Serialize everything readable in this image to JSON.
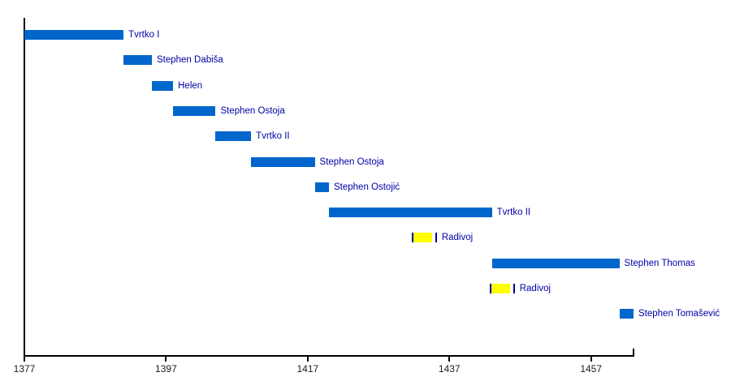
{
  "chart_data": {
    "type": "bar",
    "variant": "horizontal-timeline-gantt",
    "title": "",
    "xlabel": "",
    "ylabel": "",
    "x_axis": {
      "tick_labels": [
        "1377",
        "1397",
        "1417",
        "1437",
        "1457"
      ],
      "tick_years": [
        1377,
        1397,
        1417,
        1437,
        1457
      ],
      "range": [
        1377,
        1463
      ],
      "grid": false
    },
    "legend_position": "none",
    "bars": [
      {
        "label": "Tvrtko I",
        "start": 1377,
        "end": 1391,
        "style": "ruler"
      },
      {
        "label": "Stephen Dabiša",
        "start": 1391,
        "end": 1395,
        "style": "ruler"
      },
      {
        "label": "Helen",
        "start": 1395,
        "end": 1398,
        "style": "ruler"
      },
      {
        "label": "Stephen Ostoja",
        "start": 1398,
        "end": 1404,
        "style": "ruler"
      },
      {
        "label": "Tvrtko II",
        "start": 1404,
        "end": 1409,
        "style": "ruler"
      },
      {
        "label": "Stephen Ostoja",
        "start": 1409,
        "end": 1418,
        "style": "ruler"
      },
      {
        "label": "Stephen Ostojić",
        "start": 1418,
        "end": 1420,
        "style": "ruler"
      },
      {
        "label": "Tvrtko II",
        "start": 1420,
        "end": 1443,
        "style": "ruler"
      },
      {
        "label": "Radivoj",
        "start": 1432,
        "end": 1435,
        "style": "pretender"
      },
      {
        "label": "Stephen Thomas",
        "start": 1443,
        "end": 1461,
        "style": "ruler"
      },
      {
        "label": "Radivoj",
        "start": 1443,
        "end": 1446,
        "style": "pretender"
      },
      {
        "label": "Stephen Tomašević",
        "start": 1461,
        "end": 1463,
        "style": "ruler"
      }
    ],
    "colors": {
      "ruler_bar": "#0066CC",
      "pretender_bar": "#FFFF00",
      "pretender_marker": "#000099",
      "bar_label": "#0000A8",
      "axis": "#000000",
      "axis_label": "#1A1A1A"
    }
  }
}
